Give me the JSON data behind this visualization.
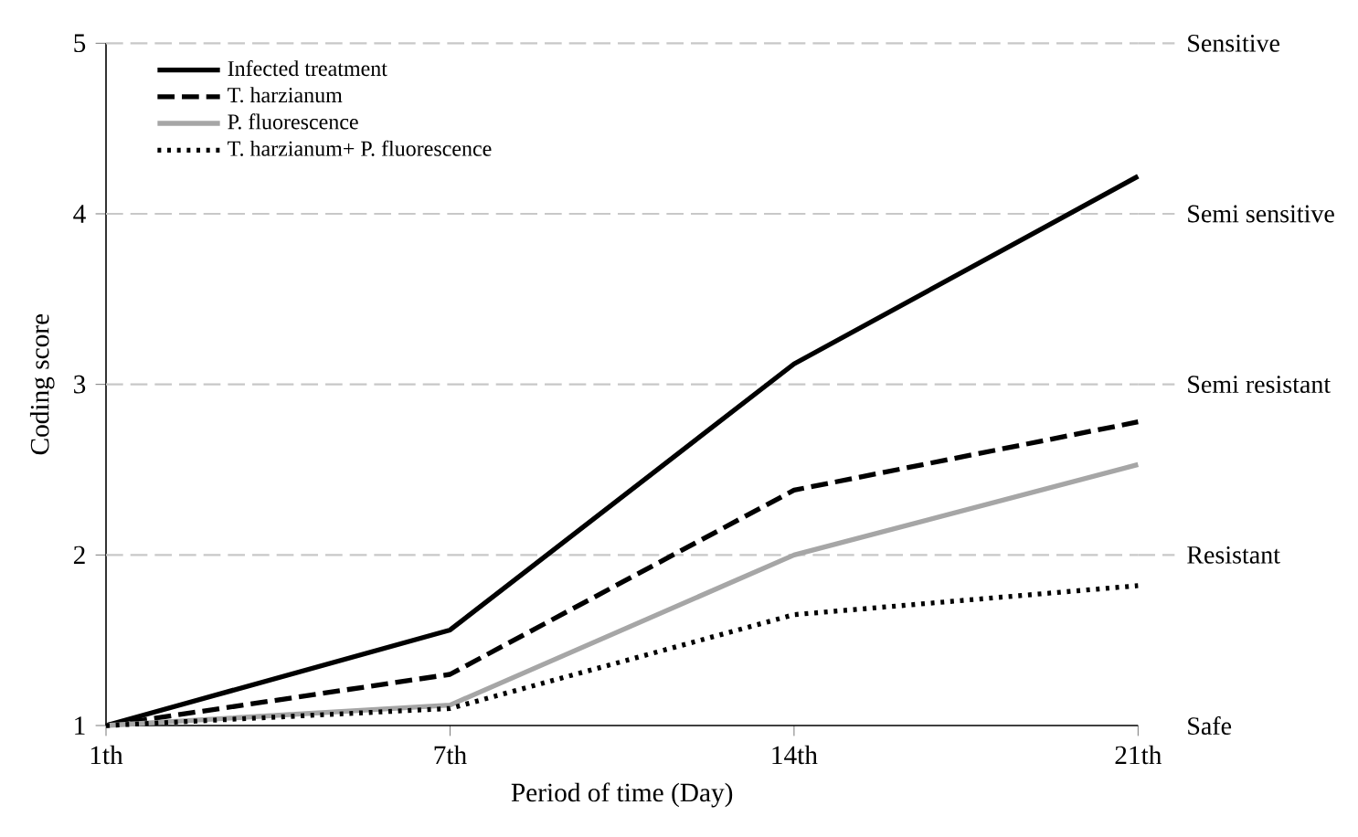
{
  "chart_data": {
    "type": "line",
    "xlabel": "Period of time (Day)",
    "ylabel": "Coding score",
    "categories": [
      "1th",
      "7th",
      "14th",
      "21th"
    ],
    "series": [
      {
        "name": "Infected treatment",
        "color": "#000000",
        "line_style": "solid",
        "values": [
          1,
          1.56,
          3.12,
          4.22
        ]
      },
      {
        "name": "T. harzianum",
        "color": "#000000",
        "line_style": "dashed",
        "values": [
          1,
          1.3,
          2.38,
          2.78
        ]
      },
      {
        "name": "P. fluorescence",
        "color": "#a6a6a6",
        "line_style": "solid",
        "values": [
          1,
          1.12,
          2.0,
          2.53
        ]
      },
      {
        "name": "T. harzianum+ P. fluorescence",
        "color": "#000000",
        "line_style": "dotted",
        "values": [
          1,
          1.1,
          1.65,
          1.82
        ]
      }
    ],
    "ylim": [
      1,
      5
    ],
    "yticks": [
      1,
      2,
      3,
      4,
      5
    ],
    "marker": "none",
    "grid": false,
    "legend": "top left",
    "ref_lines": [
      {
        "axis": "y",
        "value": 5,
        "label": "Sensitive",
        "color": "#c8c8c8",
        "line_style": "dashed"
      },
      {
        "axis": "y",
        "value": 4,
        "label": "Semi sensitive",
        "color": "#c8c8c8",
        "line_style": "dashed"
      },
      {
        "axis": "y",
        "value": 3,
        "label": "Semi resistant",
        "color": "#c8c8c8",
        "line_style": "dashed"
      },
      {
        "axis": "y",
        "value": 2,
        "label": "Resistant",
        "color": "#c8c8c8",
        "line_style": "dashed"
      }
    ],
    "annotations": [
      "Safe"
    ]
  }
}
